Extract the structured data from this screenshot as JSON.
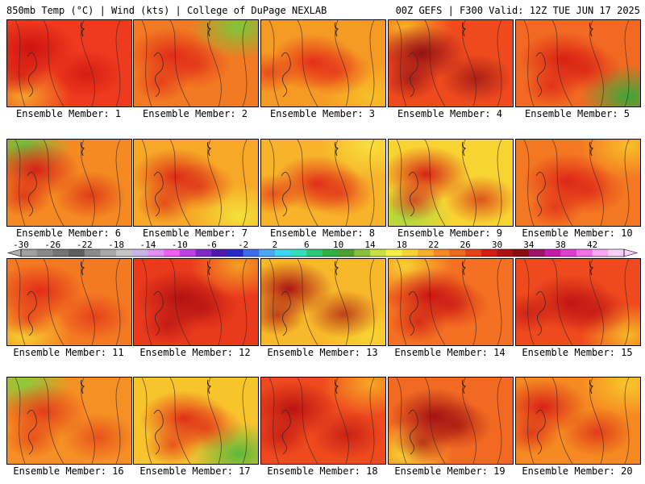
{
  "header": {
    "left_title": "850mb Temp (°C) | Wind (kts) | College of DuPage NEXLAB",
    "right_title": "00Z GEFS | F300 Valid: 12Z TUE JUN 17 2025"
  },
  "members": [
    {
      "label": "Ensemble Member: 1",
      "dominant_color": "#ee3a1e",
      "hot_color": "#cc1010",
      "cool_color": "#f5a22a"
    },
    {
      "label": "Ensemble Member: 2",
      "dominant_color": "#f27a22",
      "hot_color": "#e02818",
      "cool_color": "#7cc83a"
    },
    {
      "label": "Ensemble Member: 3",
      "dominant_color": "#f59a24",
      "hot_color": "#e42a18",
      "cool_color": "#f7c028"
    },
    {
      "label": "Ensemble Member: 4",
      "dominant_color": "#ee4a1e",
      "hot_color": "#8e0e14",
      "cool_color": "#f7b226"
    },
    {
      "label": "Ensemble Member: 5",
      "dominant_color": "#f26a22",
      "hot_color": "#d81c14",
      "cool_color": "#3aa83a"
    },
    {
      "label": "Ensemble Member: 6",
      "dominant_color": "#f58a22",
      "hot_color": "#d61c16",
      "cool_color": "#6cc040"
    },
    {
      "label": "Ensemble Member: 7",
      "dominant_color": "#f6a826",
      "hot_color": "#dc2618",
      "cool_color": "#f4e23a"
    },
    {
      "label": "Ensemble Member: 8",
      "dominant_color": "#f7b42a",
      "hot_color": "#e02818",
      "cool_color": "#f8e03c"
    },
    {
      "label": "Ensemble Member: 9",
      "dominant_color": "#f8d432",
      "hot_color": "#d41a16",
      "cool_color": "#a8d840"
    },
    {
      "label": "Ensemble Member: 10",
      "dominant_color": "#f47822",
      "hot_color": "#dc2218",
      "cool_color": "#f7c028"
    },
    {
      "label": "Ensemble Member: 11",
      "dominant_color": "#f47a22",
      "hot_color": "#e02818",
      "cool_color": "#f8d030"
    },
    {
      "label": "Ensemble Member: 12",
      "dominant_color": "#ea3a1c",
      "hot_color": "#b01012",
      "cool_color": "#f5a024"
    },
    {
      "label": "Ensemble Member: 13",
      "dominant_color": "#f7b82a",
      "hot_color": "#a80e12",
      "cool_color": "#f8d432"
    },
    {
      "label": "Ensemble Member: 14",
      "dominant_color": "#f47022",
      "hot_color": "#c81214",
      "cool_color": "#f8d032"
    },
    {
      "label": "Ensemble Member: 15",
      "dominant_color": "#ee4a1e",
      "hot_color": "#c01214",
      "cool_color": "#f7b826"
    },
    {
      "label": "Ensemble Member: 16",
      "dominant_color": "#f59024",
      "hot_color": "#e23818",
      "cool_color": "#8acc3c"
    },
    {
      "label": "Ensemble Member: 17",
      "dominant_color": "#f8c42c",
      "hot_color": "#e02818",
      "cool_color": "#5cb83c"
    },
    {
      "label": "Ensemble Member: 18",
      "dominant_color": "#ee4a1e",
      "hot_color": "#b81012",
      "cool_color": "#f7a826"
    },
    {
      "label": "Ensemble Member: 19",
      "dominant_color": "#f26a22",
      "hot_color": "#a00e12",
      "cool_color": "#f8d032"
    },
    {
      "label": "Ensemble Member: 20",
      "dominant_color": "#f58a22",
      "hot_color": "#d81c16",
      "cool_color": "#f8c82c"
    }
  ],
  "colorbar": {
    "ticks": [
      "-30",
      "-26",
      "-22",
      "-18",
      "-14",
      "-10",
      "-6",
      "-2",
      "2",
      "6",
      "10",
      "14",
      "18",
      "22",
      "26",
      "30",
      "34",
      "38",
      "42"
    ],
    "colors": [
      "#a0a0a0",
      "#8a8a8a",
      "#747474",
      "#5e5e5e",
      "#8a8a8a",
      "#a8a8a8",
      "#c6c6c6",
      "#c8b4e6",
      "#e28ef2",
      "#f060f0",
      "#c040e8",
      "#8028c8",
      "#5018b0",
      "#2828c8",
      "#3c6ce8",
      "#48a8f0",
      "#3cd8f0",
      "#30e0b8",
      "#28c878",
      "#30b040",
      "#4ca030",
      "#88c038",
      "#c8e040",
      "#f8f040",
      "#f8d430",
      "#f8b028",
      "#f58a22",
      "#f06820",
      "#e84018",
      "#d81c14",
      "#b01010",
      "#880c10",
      "#a0106a",
      "#c818a8",
      "#e040d0",
      "#f070e8",
      "#f8a8f0",
      "#fcd0f8"
    ]
  }
}
